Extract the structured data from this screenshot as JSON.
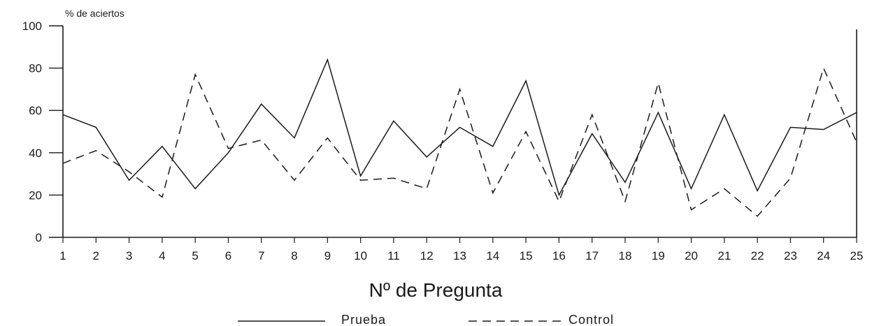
{
  "chart_data": {
    "type": "line",
    "ylabel": "% de aciertos",
    "xlabel": "Nº de Pregunta",
    "ylim": [
      0,
      100
    ],
    "yticks": [
      0,
      20,
      40,
      60,
      80,
      100
    ],
    "categories": [
      "1",
      "2",
      "3",
      "4",
      "5",
      "6",
      "7",
      "8",
      "9",
      "10",
      "11",
      "12",
      "13",
      "14",
      "15",
      "16",
      "17",
      "18",
      "19",
      "20",
      "21",
      "22",
      "23",
      "24",
      "25"
    ],
    "series": [
      {
        "name": "Prueba",
        "style": "solid",
        "values": [
          58,
          52,
          27,
          43,
          23,
          40,
          63,
          47,
          84,
          29,
          55,
          38,
          52,
          43,
          74,
          20,
          49,
          26,
          59,
          23,
          58,
          22,
          52,
          51,
          59
        ]
      },
      {
        "name": "Control",
        "style": "dashed",
        "values": [
          35,
          41,
          31,
          19,
          77,
          42,
          46,
          27,
          47,
          27,
          28,
          23,
          70,
          21,
          50,
          17,
          58,
          17,
          73,
          13,
          23,
          10,
          28,
          80,
          45
        ]
      }
    ],
    "legend_position": "bottom",
    "grid": false
  }
}
